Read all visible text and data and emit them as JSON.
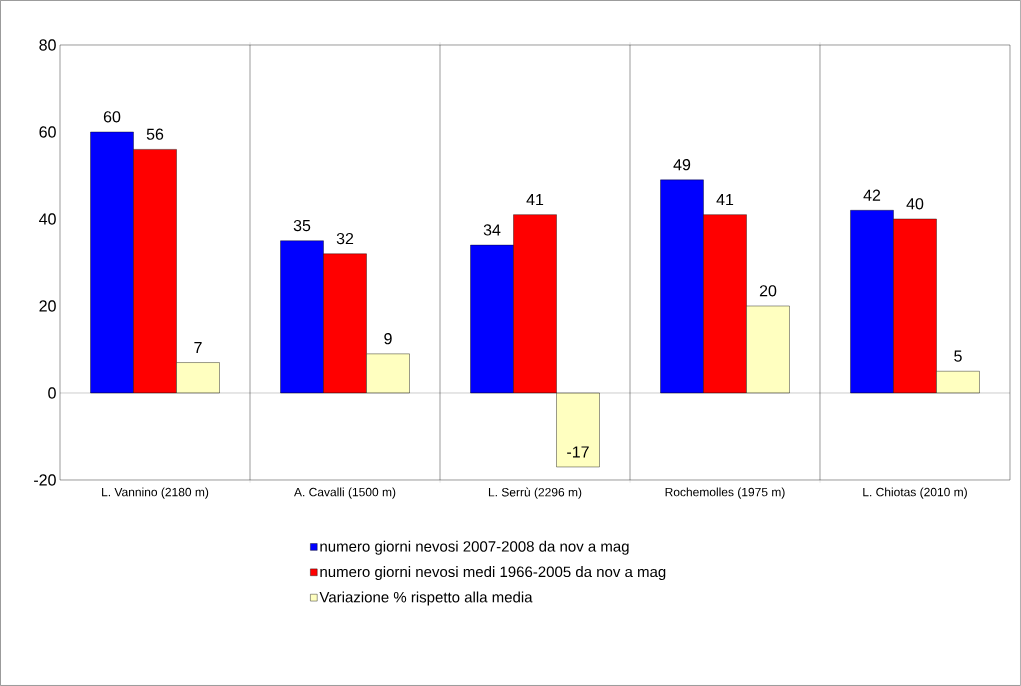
{
  "chart_data": {
    "type": "bar",
    "categories": [
      "L. Vannino (2180 m)",
      "A. Cavalli (1500 m)",
      "L. Serrù (2296 m)",
      "Rochemolles (1975 m)",
      "L. Chiotas (2010 m)"
    ],
    "series": [
      {
        "name": "numero giorni nevosi 2007-2008 da nov a mag",
        "color": "#0000ff",
        "values": [
          60,
          35,
          34,
          49,
          42
        ]
      },
      {
        "name": "numero giorni nevosi medi 1966-2005 da nov a mag",
        "color": "#ff0000",
        "values": [
          56,
          32,
          41,
          41,
          40
        ]
      },
      {
        "name": "Variazione % rispetto alla media",
        "color": "#ffffc0",
        "values": [
          7,
          9,
          -17,
          20,
          5
        ]
      }
    ],
    "ylim": [
      -20,
      80
    ],
    "yticks": [
      -20,
      0,
      20,
      40,
      60,
      80
    ],
    "grid": "x",
    "ref_lines": [
      {
        "axis": "y",
        "value": 0,
        "color": "#000000"
      }
    ],
    "legend": "bottom",
    "data_labels": true
  }
}
